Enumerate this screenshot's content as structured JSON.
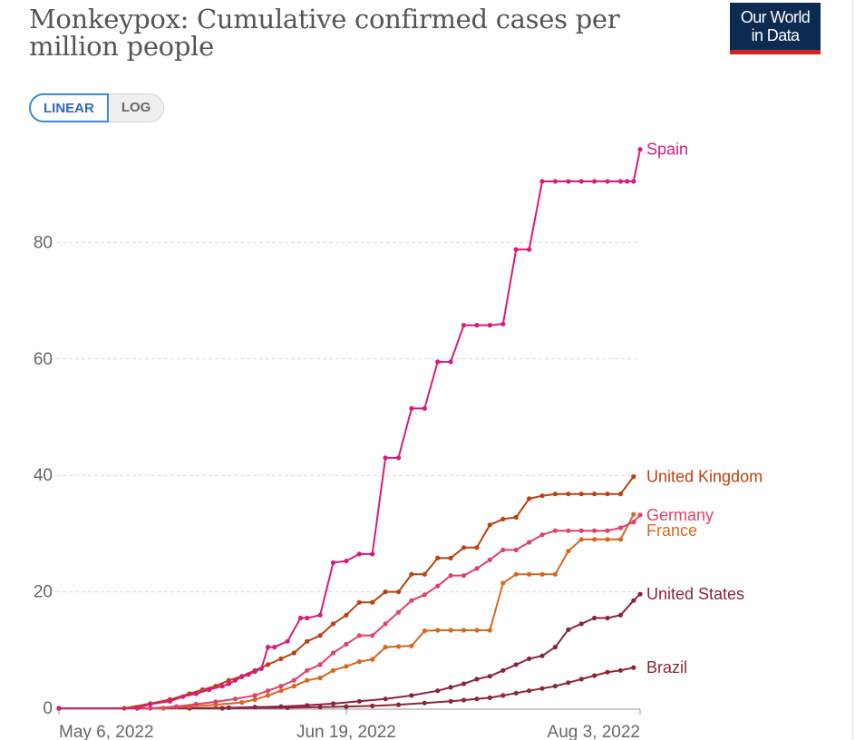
{
  "header": {
    "title": "Monkeypox: Cumulative confirmed cases per million people",
    "logo_line1": "Our World",
    "logo_line2": "in Data"
  },
  "controls": {
    "linear_label": "LINEAR",
    "log_label": "LOG"
  },
  "colors": {
    "spain": "#d81b7a",
    "uk": "#b8420f",
    "germany": "#e0406a",
    "france": "#d9661f",
    "us": "#8c2148",
    "brazil": "#8c2735",
    "grid": "#d9d9d9",
    "axis_text": "#666666",
    "logo_bg": "#0d2b52",
    "logo_bar": "#ce261e"
  },
  "chart_data": {
    "type": "line",
    "title": "Monkeypox: Cumulative confirmed cases per million people",
    "xlabel": "",
    "ylabel": "",
    "x_range_days": [
      0,
      89
    ],
    "x_ticks": [
      {
        "day": 0,
        "label": "May 6, 2022"
      },
      {
        "day": 44,
        "label": "Jun 19, 2022"
      },
      {
        "day": 89,
        "label": "Aug 3, 2022"
      }
    ],
    "ylim": [
      0,
      100
    ],
    "y_ticks": [
      0,
      20,
      40,
      60,
      80
    ],
    "grid": true,
    "series": [
      {
        "name": "Spain",
        "key": "spain",
        "label_offset": 0,
        "x": [
          0,
          12,
          14,
          17,
          19,
          21,
          23,
          25,
          26,
          27,
          28,
          29,
          30,
          31,
          32,
          33,
          35,
          37,
          38,
          40,
          42,
          44,
          46,
          48,
          50,
          52,
          54,
          56,
          58,
          60,
          62,
          64,
          66,
          68,
          70,
          72,
          74,
          76,
          78,
          80,
          82,
          84,
          86,
          87,
          88,
          89
        ],
        "y": [
          0,
          0,
          0.7,
          1.2,
          2,
          2.5,
          3.2,
          3.8,
          4.2,
          4.8,
          5.4,
          5.8,
          6.3,
          6.8,
          10.5,
          10.5,
          11.5,
          15.5,
          15.5,
          16,
          25,
          25.3,
          26.5,
          26.5,
          43,
          43,
          51.5,
          51.5,
          59.5,
          59.5,
          65.8,
          65.8,
          65.8,
          66,
          78.8,
          78.8,
          90.5,
          90.5,
          90.5,
          90.5,
          90.5,
          90.5,
          90.5,
          90.5,
          90.5,
          96
        ]
      },
      {
        "name": "United Kingdom",
        "key": "uk",
        "label_offset": 0,
        "x": [
          0,
          10,
          14,
          17,
          20,
          22,
          24,
          26,
          28,
          30,
          32,
          34,
          36,
          38,
          40,
          42,
          44,
          46,
          48,
          50,
          52,
          54,
          56,
          58,
          60,
          62,
          64,
          66,
          68,
          70,
          72,
          74,
          76,
          78,
          80,
          82,
          84,
          86,
          88
        ],
        "y": [
          0,
          0,
          0.8,
          1.5,
          2.5,
          3.2,
          3.8,
          4.8,
          5.5,
          6.5,
          7.5,
          8.5,
          9.5,
          11.5,
          12.5,
          14.5,
          16,
          18.2,
          18.2,
          20,
          20,
          23,
          23,
          25.8,
          25.8,
          27.6,
          27.6,
          31.5,
          32.5,
          32.8,
          36,
          36.5,
          36.8,
          36.8,
          36.8,
          36.8,
          36.8,
          36.8,
          39.8
        ]
      },
      {
        "name": "Germany",
        "key": "germany",
        "label_offset": 0,
        "x": [
          0,
          14,
          18,
          21,
          24,
          27,
          30,
          32,
          34,
          36,
          38,
          40,
          42,
          44,
          46,
          48,
          50,
          52,
          54,
          56,
          58,
          60,
          62,
          64,
          66,
          68,
          70,
          72,
          74,
          76,
          78,
          80,
          82,
          84,
          86,
          88,
          89
        ],
        "y": [
          0,
          0,
          0.3,
          0.7,
          1.1,
          1.6,
          2.2,
          3,
          3.8,
          4.8,
          6.5,
          7.5,
          9.5,
          11,
          12.5,
          12.5,
          14.5,
          16.5,
          18.5,
          19.5,
          21,
          22.8,
          22.8,
          24,
          25.5,
          27.2,
          27.2,
          28.5,
          29.8,
          30.5,
          30.5,
          30.5,
          30.5,
          30.5,
          31,
          32,
          33.2
        ]
      },
      {
        "name": "France",
        "key": "france",
        "label_offset": 18,
        "x": [
          0,
          16,
          20,
          24,
          28,
          30,
          32,
          34,
          36,
          38,
          40,
          42,
          44,
          46,
          48,
          50,
          52,
          54,
          56,
          58,
          60,
          62,
          64,
          66,
          68,
          70,
          72,
          74,
          76,
          78,
          80,
          82,
          84,
          86,
          88
        ],
        "y": [
          0,
          0,
          0.3,
          0.6,
          1,
          1.5,
          2.2,
          3,
          3.8,
          4.8,
          5.2,
          6.5,
          7.2,
          8,
          8.4,
          10.5,
          10.6,
          10.7,
          13.3,
          13.4,
          13.4,
          13.4,
          13.4,
          13.4,
          21.5,
          23,
          23,
          23,
          23,
          27,
          29,
          29,
          29,
          29,
          33.3
        ]
      },
      {
        "name": "United States",
        "key": "us",
        "label_offset": 0,
        "x": [
          0,
          20,
          26,
          30,
          34,
          38,
          42,
          46,
          50,
          54,
          58,
          60,
          62,
          64,
          66,
          68,
          70,
          72,
          74,
          76,
          78,
          80,
          82,
          84,
          86,
          88,
          89
        ],
        "y": [
          0,
          0,
          0.1,
          0.2,
          0.3,
          0.5,
          0.8,
          1.2,
          1.6,
          2.2,
          3,
          3.6,
          4.2,
          5,
          5.5,
          6.5,
          7.5,
          8.5,
          9,
          10.5,
          13.5,
          14.5,
          15.5,
          15.5,
          16,
          18.5,
          19.6
        ]
      },
      {
        "name": "Brazil",
        "key": "brazil",
        "label_offset": 0,
        "x": [
          0,
          25,
          35,
          40,
          44,
          48,
          52,
          56,
          60,
          62,
          64,
          66,
          68,
          70,
          72,
          74,
          76,
          78,
          80,
          82,
          84,
          86,
          88
        ],
        "y": [
          0,
          0,
          0.1,
          0.2,
          0.3,
          0.4,
          0.6,
          0.9,
          1.2,
          1.4,
          1.6,
          1.8,
          2.2,
          2.6,
          3,
          3.4,
          3.8,
          4.4,
          5,
          5.6,
          6.2,
          6.5,
          7
        ]
      }
    ]
  }
}
